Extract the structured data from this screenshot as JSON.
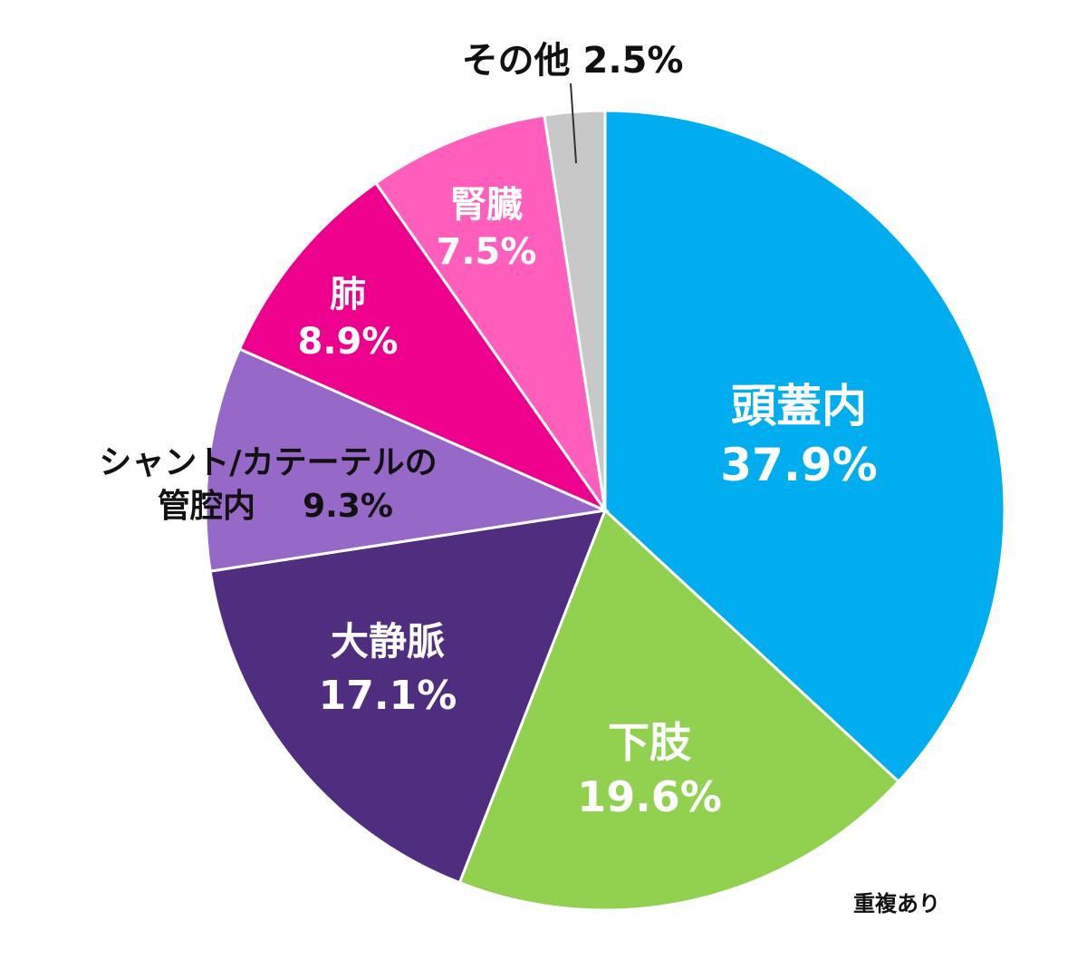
{
  "chart_data": {
    "type": "pie",
    "slices": [
      {
        "label": "頭蓋内",
        "value": 37.9,
        "value_text": "37.9%",
        "color": "#00AEEF",
        "label_color": "#ffffff"
      },
      {
        "label": "下肢",
        "value": 19.6,
        "value_text": "19.6%",
        "color": "#92D050",
        "label_color": "#ffffff"
      },
      {
        "label": "大静脈",
        "value": 17.1,
        "value_text": "17.1%",
        "color": "#4F2D7F",
        "label_color": "#ffffff"
      },
      {
        "label": "シャント/カテーテルの管腔内",
        "label_lines": [
          "シャント/カテーテルの",
          "管腔内"
        ],
        "value": 9.3,
        "value_text": "9.3%",
        "color": "#9669C8",
        "label_color": "#111111"
      },
      {
        "label": "肺",
        "value": 8.9,
        "value_text": "8.9%",
        "color": "#EC008C",
        "label_color": "#ffffff"
      },
      {
        "label": "腎臓",
        "value": 7.5,
        "value_text": "7.5%",
        "color": "#FF5EBC",
        "label_color": "#ffffff"
      },
      {
        "label": "その他",
        "value": 2.5,
        "value_text": "2.5%",
        "color": "#C8C8C8",
        "label_color": "#111111"
      }
    ],
    "footnote": "重複あり",
    "legend": "none",
    "start": "top",
    "direction": "clockwise"
  }
}
